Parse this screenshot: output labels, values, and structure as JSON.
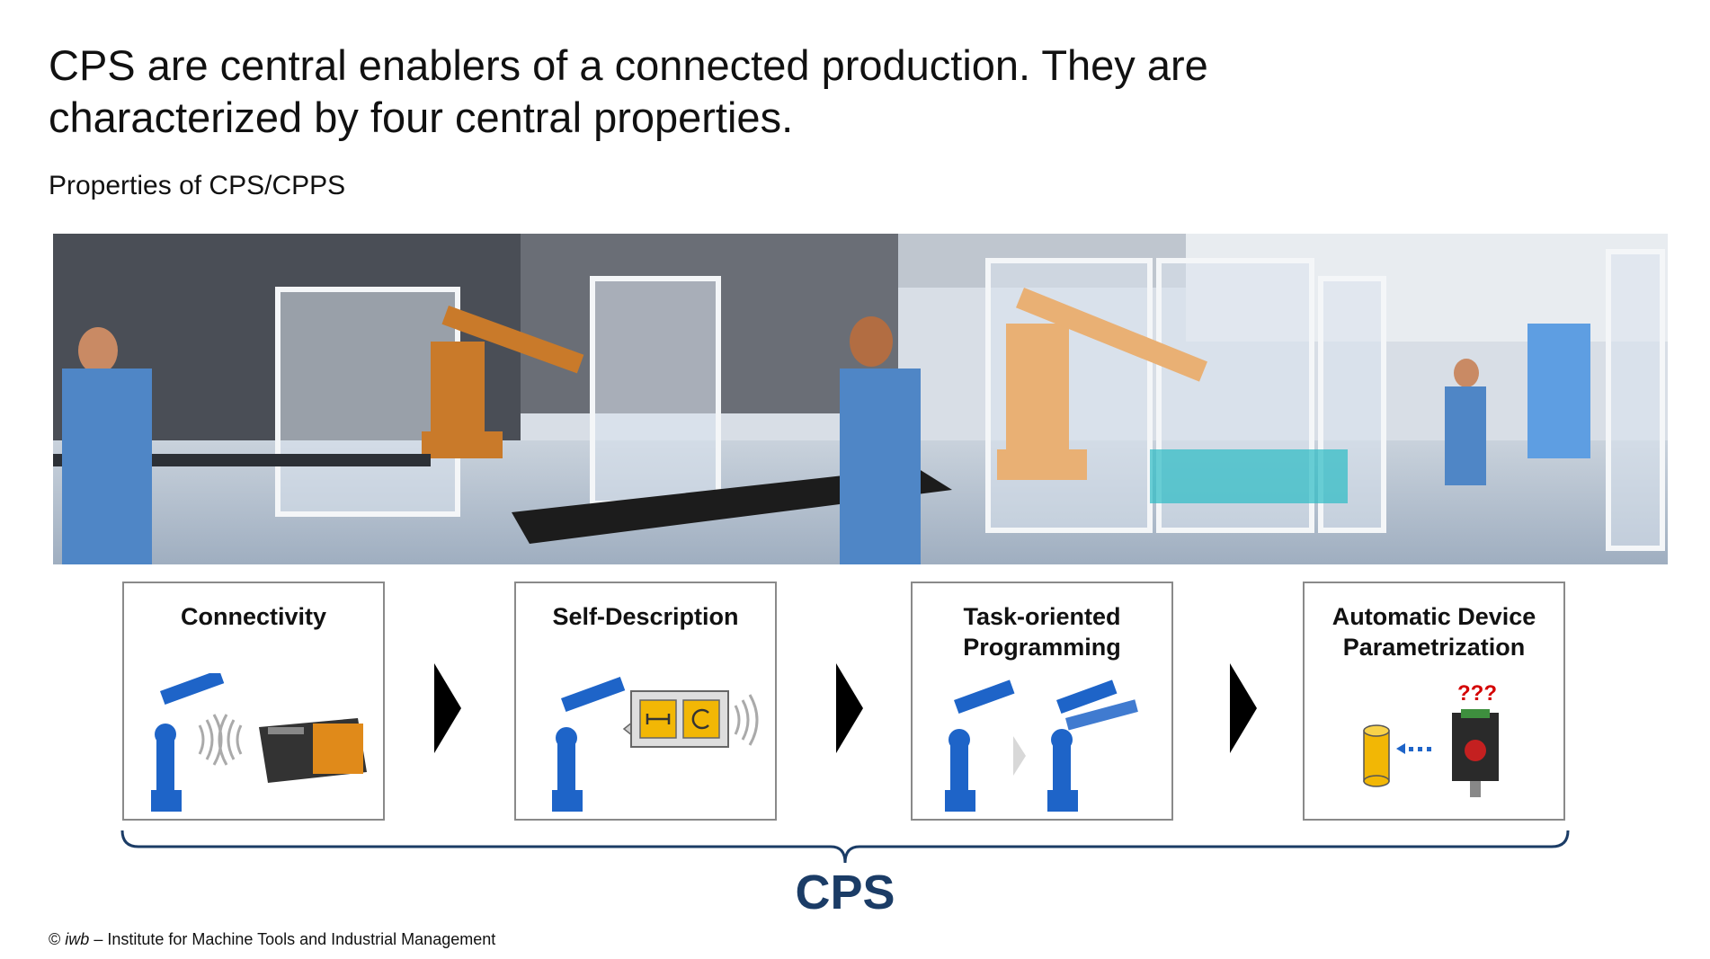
{
  "slide": {
    "title_line1": "CPS are central enablers of a connected production. They are",
    "title_line2": "characterized by four central properties.",
    "subtitle": "Properties of CPS/CPPS",
    "properties": [
      {
        "title": "Connectivity"
      },
      {
        "title": "Self-Description"
      },
      {
        "title": "Task-oriented\nProgramming"
      },
      {
        "title": "Automatic Device\nParametrization",
        "marker": "???"
      }
    ],
    "group_label": "CPS",
    "footer": {
      "copyright": "©",
      "institute": "iwb",
      "text": "– Institute for Machine Tools and Industrial Management"
    },
    "colors": {
      "brace": "#1b3c66",
      "robot": "#1e64c8",
      "accent_yellow": "#f2b705",
      "marker_red": "#d40000"
    }
  }
}
